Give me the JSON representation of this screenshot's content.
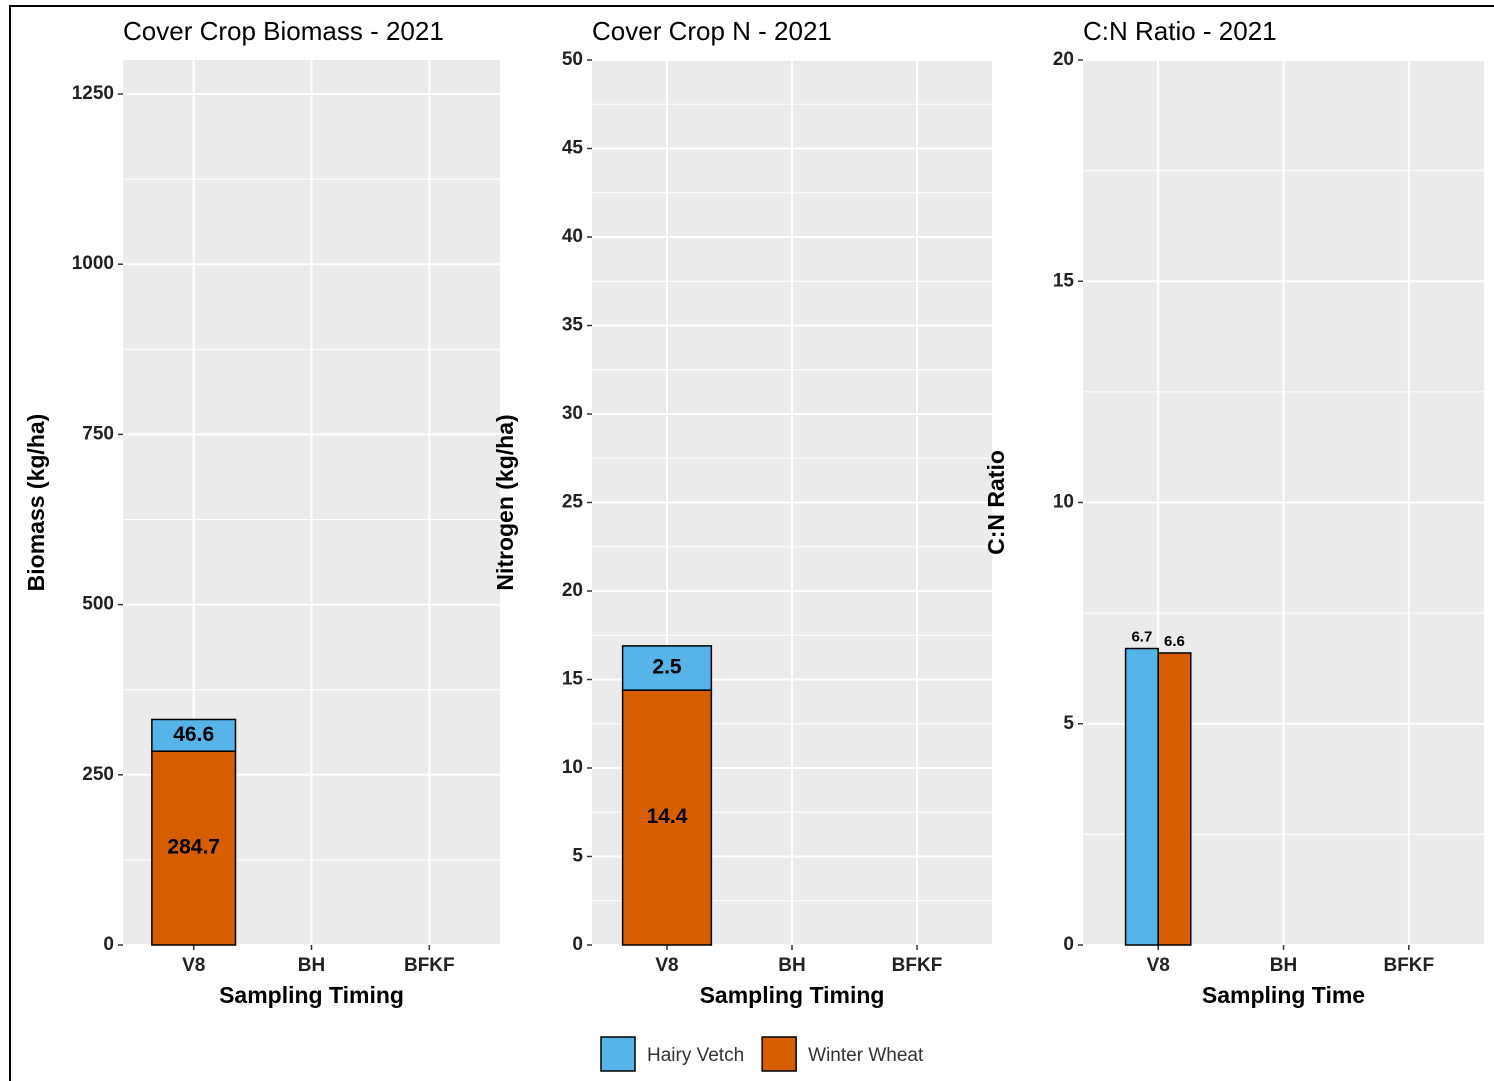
{
  "chart_data": [
    {
      "type": "bar",
      "stacked": true,
      "title": "Cover Crop Biomass - 2021",
      "x_label": "Sampling Timing",
      "y_label": "Biomass (kg/ha)",
      "categories": [
        "V8",
        "BH",
        "BFKF"
      ],
      "series": [
        {
          "name": "Winter Wheat",
          "color": "#d55e00",
          "values": [
            284.7,
            null,
            null
          ]
        },
        {
          "name": "Hairy Vetch",
          "color": "#56b4e9",
          "values": [
            46.6,
            null,
            null
          ]
        }
      ],
      "ylim": [
        0,
        1300
      ],
      "yticks": [
        0,
        250,
        500,
        750,
        1000,
        1250
      ],
      "minor_yticks": [
        125,
        375,
        625,
        875,
        1125
      ],
      "grid": true
    },
    {
      "type": "bar",
      "stacked": true,
      "title": "Cover Crop N - 2021",
      "x_label": "Sampling Timing",
      "y_label": "Nitrogen (kg/ha)",
      "categories": [
        "V8",
        "BH",
        "BFKF"
      ],
      "series": [
        {
          "color": "#d55e00",
          "values": [
            14.4,
            null,
            null
          ]
        },
        {
          "color": "#56b4e9",
          "values": [
            2.5,
            null,
            null
          ]
        }
      ],
      "ylim": [
        0,
        50
      ],
      "yticks": [
        0,
        5,
        10,
        15,
        20,
        25,
        30,
        35,
        40,
        45,
        50
      ],
      "minor_yticks": [
        2.5,
        7.5,
        12.5,
        17.5,
        22.5,
        27.5,
        32.5,
        37.5,
        42.5,
        47.5
      ],
      "grid": true
    },
    {
      "type": "bar",
      "stacked": false,
      "title": "C:N Ratio - 2021",
      "x_label": "Sampling Time",
      "y_label": "C:N Ratio",
      "categories": [
        "V8",
        "BH",
        "BFKF"
      ],
      "series": [
        {
          "color": "#56b4e9",
          "values": [
            6.7,
            null,
            null
          ]
        },
        {
          "color": "#d55e00",
          "values": [
            6.6,
            null,
            null
          ]
        }
      ],
      "ylim": [
        0,
        20
      ],
      "yticks": [
        0,
        5,
        10,
        15,
        20
      ],
      "minor_yticks": [
        2.5,
        7.5,
        12.5,
        17.5
      ],
      "grid": true
    }
  ]
}
